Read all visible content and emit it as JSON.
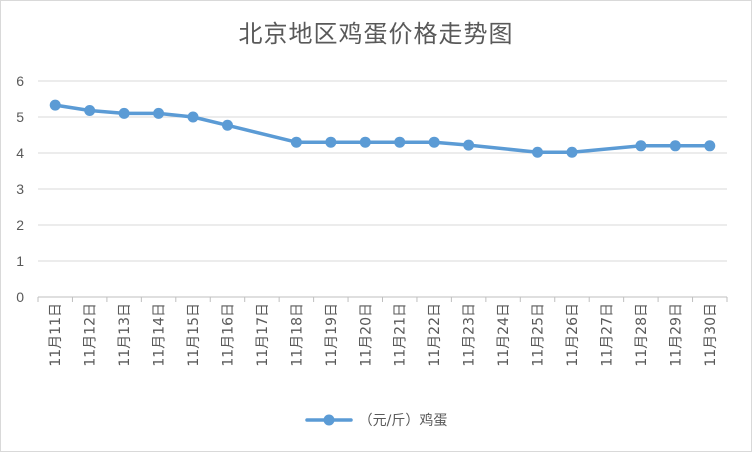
{
  "chart_data": {
    "type": "line",
    "title": "北京地区鸡蛋价格走势图",
    "categories": [
      "11月11日",
      "11月12日",
      "11月13日",
      "11月14日",
      "11月15日",
      "11月16日",
      "11月17日",
      "11月18日",
      "11月19日",
      "11月20日",
      "11月21日",
      "11月22日",
      "11月23日",
      "11月24日",
      "11月25日",
      "11月26日",
      "11月27日",
      "11月28日",
      "11月29日",
      "11月30日"
    ],
    "series": [
      {
        "name": "（元/斤）鸡蛋",
        "values": [
          5.33,
          5.18,
          5.1,
          5.1,
          5.0,
          4.77,
          null,
          4.3,
          4.3,
          4.3,
          4.3,
          4.3,
          4.22,
          null,
          4.02,
          4.02,
          null,
          4.2,
          4.2,
          4.2
        ],
        "color": "#5b9bd5"
      }
    ],
    "yticks": [
      0,
      1,
      2,
      3,
      4,
      5,
      6
    ],
    "ylim": [
      0,
      6
    ],
    "grid": true,
    "legend_position": "bottom",
    "gaps_connected": true
  }
}
